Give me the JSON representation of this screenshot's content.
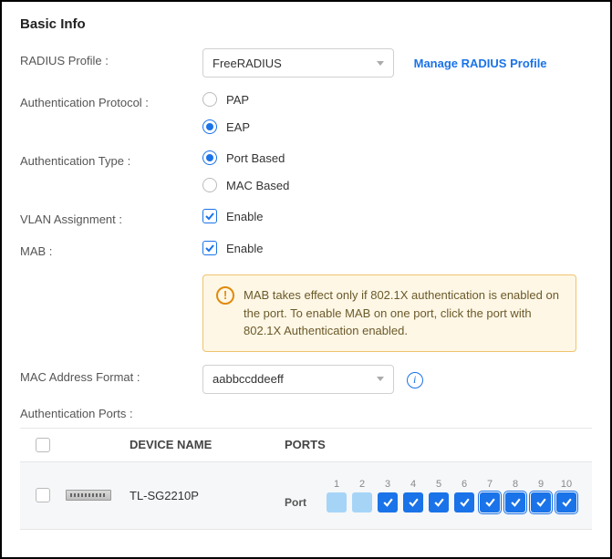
{
  "section_title": "Basic Info",
  "labels": {
    "radius_profile": "RADIUS Profile :",
    "auth_protocol": "Authentication Protocol :",
    "auth_type": "Authentication Type :",
    "vlan_assignment": "VLAN Assignment :",
    "mab": "MAB :",
    "mac_format": "MAC Address Format :",
    "auth_ports": "Authentication Ports :"
  },
  "radius_profile": {
    "selected": "FreeRADIUS",
    "manage_link": "Manage RADIUS Profile"
  },
  "auth_protocol": {
    "options": [
      "PAP",
      "EAP"
    ],
    "selected": "EAP"
  },
  "auth_type": {
    "options": [
      "Port Based",
      "MAC Based"
    ],
    "selected": "Port Based"
  },
  "vlan_assignment": {
    "label": "Enable",
    "checked": true
  },
  "mab": {
    "label": "Enable",
    "checked": true
  },
  "mab_alert": "MAB takes effect only if 802.1X authentication is enabled on the port. To enable MAB on one port, click the port with 802.1X Authentication enabled.",
  "mac_format": {
    "selected": "aabbccddeeff"
  },
  "table": {
    "columns": {
      "device_name": "DEVICE NAME",
      "ports": "PORTS"
    },
    "row": {
      "device_name": "TL-SG2210P",
      "port_row_label": "Port",
      "ports": [
        {
          "num": "1",
          "state": "light",
          "outlined": false
        },
        {
          "num": "2",
          "state": "light",
          "outlined": false
        },
        {
          "num": "3",
          "state": "checked",
          "outlined": false
        },
        {
          "num": "4",
          "state": "checked",
          "outlined": false
        },
        {
          "num": "5",
          "state": "checked",
          "outlined": false
        },
        {
          "num": "6",
          "state": "checked",
          "outlined": false
        },
        {
          "num": "7",
          "state": "checked",
          "outlined": true
        },
        {
          "num": "8",
          "state": "checked",
          "outlined": true
        },
        {
          "num": "9",
          "state": "checked",
          "outlined": true
        },
        {
          "num": "10",
          "state": "checked",
          "outlined": true
        }
      ]
    }
  }
}
